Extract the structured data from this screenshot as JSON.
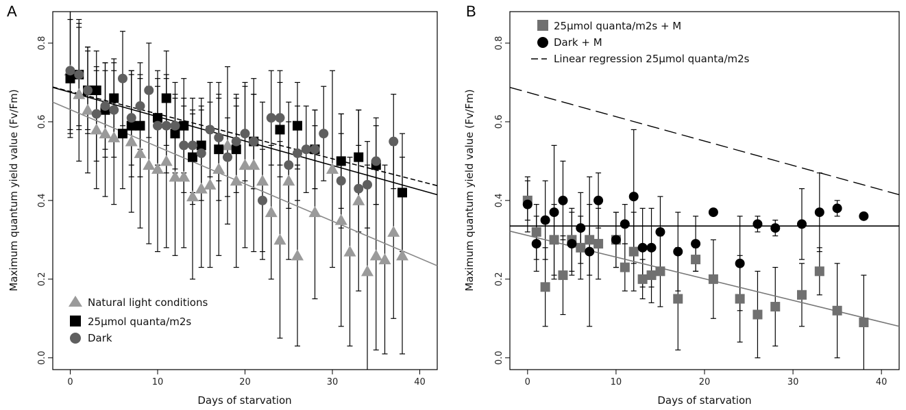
{
  "figure": {
    "panels": [
      {
        "letter": "A",
        "xlabel": "Days of starvation",
        "ylabel": "Maximum quantum yield value (Fv/Fm)",
        "legend": [
          "Natural light conditions",
          "25μmol quanta/m2s",
          "Dark"
        ]
      },
      {
        "letter": "B",
        "xlabel": "Days of starvation",
        "ylabel": "Maximum quantum yield value (Fv/Fm)",
        "legend": [
          "25μmol quanta/m2s + M",
          "Dark + M",
          "Linear regression 25μmol quanta/m2s"
        ]
      }
    ]
  },
  "chart_data": [
    {
      "type": "scatter",
      "panel": "A",
      "xlabel": "Days of starvation",
      "ylabel": "Maximum quantum yield value (Fv/Fm)",
      "xlim": [
        -2,
        42
      ],
      "ylim": [
        -0.03,
        0.88
      ],
      "x_ticks": [
        0,
        10,
        20,
        30,
        40
      ],
      "y_ticks": [
        0.0,
        0.2,
        0.4,
        0.6,
        0.8
      ],
      "legend_position": "bottom-left",
      "series": [
        {
          "name": "Natural light conditions",
          "marker": "triangle",
          "color": "#9a9a9a",
          "x": [
            0,
            1,
            2,
            3,
            4,
            5,
            7,
            8,
            9,
            10,
            11,
            12,
            13,
            14,
            15,
            16,
            17,
            18,
            19,
            20,
            21,
            22,
            23,
            24,
            25,
            26,
            28,
            30,
            31,
            32,
            33,
            34,
            35,
            36,
            37,
            38
          ],
          "y": [
            0.73,
            0.67,
            0.63,
            0.58,
            0.57,
            0.56,
            0.55,
            0.52,
            0.49,
            0.48,
            0.5,
            0.46,
            0.46,
            0.41,
            0.43,
            0.44,
            0.48,
            0.54,
            0.45,
            0.49,
            0.49,
            0.45,
            0.37,
            0.3,
            0.45,
            0.26,
            0.37,
            0.48,
            0.35,
            0.27,
            0.4,
            0.22,
            0.26,
            0.25,
            0.32,
            0.26
          ],
          "err": [
            0.16,
            0.17,
            0.16,
            0.15,
            0.16,
            0.17,
            0.18,
            0.19,
            0.2,
            0.21,
            0.22,
            0.2,
            0.18,
            0.21,
            0.2,
            0.21,
            0.22,
            0.2,
            0.22,
            0.21,
            0.22,
            0.2,
            0.17,
            0.25,
            0.2,
            0.23,
            0.22,
            0.25,
            0.27,
            0.24,
            0.23,
            0.27,
            0.24,
            0.24,
            0.22,
            0.25
          ],
          "regression": {
            "intercept": 0.631,
            "slope": -0.00945
          }
        },
        {
          "name": "25μmol quanta/m2s",
          "marker": "square",
          "color": "#000000",
          "x": [
            0,
            1,
            2,
            3,
            4,
            5,
            6,
            7,
            8,
            10,
            11,
            12,
            13,
            14,
            15,
            17,
            19,
            21,
            24,
            26,
            28,
            31,
            33,
            35,
            38
          ],
          "y": [
            0.71,
            0.72,
            0.68,
            0.68,
            0.63,
            0.66,
            0.57,
            0.59,
            0.59,
            0.61,
            0.66,
            0.57,
            0.59,
            0.51,
            0.54,
            0.53,
            0.53,
            0.55,
            0.58,
            0.59,
            0.53,
            0.5,
            0.51,
            0.49,
            0.42
          ],
          "err": [
            0.15,
            0.13,
            0.11,
            0.1,
            0.12,
            0.1,
            0.14,
            0.13,
            0.13,
            0.12,
            0.12,
            0.1,
            0.12,
            0.12,
            0.12,
            0.13,
            0.11,
            0.12,
            0.12,
            0.11,
            0.1,
            0.12,
            0.12,
            0.1,
            0.15
          ],
          "regression": {
            "intercept": 0.675,
            "slope": -0.0062
          }
        },
        {
          "name": "Dark",
          "marker": "circle",
          "color": "#5f5f5f",
          "x": [
            0,
            1,
            2,
            3,
            4,
            5,
            6,
            7,
            8,
            9,
            10,
            11,
            12,
            13,
            14,
            15,
            16,
            17,
            18,
            19,
            20,
            21,
            22,
            23,
            24,
            25,
            26,
            27,
            28,
            29,
            31,
            33,
            34,
            35,
            37
          ],
          "y": [
            0.73,
            0.72,
            0.68,
            0.62,
            0.64,
            0.63,
            0.71,
            0.61,
            0.64,
            0.68,
            0.59,
            0.59,
            0.59,
            0.54,
            0.54,
            0.52,
            0.58,
            0.56,
            0.51,
            0.55,
            0.57,
            0.55,
            0.4,
            0.61,
            0.61,
            0.49,
            0.52,
            0.53,
            0.53,
            0.57,
            0.45,
            0.43,
            0.44,
            0.5,
            0.55
          ],
          "err": [
            0.15,
            0.14,
            0.1,
            0.12,
            0.11,
            0.12,
            0.12,
            0.12,
            0.11,
            0.12,
            0.12,
            0.12,
            0.11,
            0.12,
            0.12,
            0.12,
            0.12,
            0.11,
            0.1,
            0.11,
            0.12,
            0.12,
            0.13,
            0.12,
            0.12,
            0.11,
            0.12,
            0.11,
            0.1,
            0.12,
            0.12,
            0.11,
            0.11,
            0.11,
            0.12
          ],
          "regression": {
            "intercept": 0.677,
            "slope": -0.0057
          }
        }
      ]
    },
    {
      "type": "scatter",
      "panel": "B",
      "xlabel": "Days of starvation",
      "ylabel": "Maximum quantum yield value (Fv/Fm)",
      "xlim": [
        -2,
        42
      ],
      "ylim": [
        -0.03,
        0.88
      ],
      "x_ticks": [
        0,
        10,
        20,
        30,
        40
      ],
      "y_ticks": [
        0.0,
        0.2,
        0.4,
        0.6,
        0.8
      ],
      "legend_position": "top-left",
      "series": [
        {
          "name": "25μmol quanta/m2s + M",
          "marker": "square",
          "color": "#707070",
          "x": [
            0,
            1,
            2,
            3,
            4,
            5,
            6,
            7,
            8,
            10,
            11,
            12,
            13,
            14,
            15,
            17,
            19,
            21,
            24,
            26,
            28,
            31,
            33,
            35,
            38
          ],
          "y": [
            0.4,
            0.32,
            0.18,
            0.3,
            0.21,
            0.3,
            0.28,
            0.3,
            0.29,
            0.3,
            0.23,
            0.27,
            0.2,
            0.21,
            0.22,
            0.15,
            0.25,
            0.2,
            0.15,
            0.11,
            0.13,
            0.16,
            0.22,
            0.12,
            0.09
          ],
          "err": [
            0.05,
            0.07,
            0.1,
            0.09,
            0.1,
            0.08,
            0.08,
            0.09,
            0.09,
            0.07,
            0.06,
            0.1,
            0.05,
            0.07,
            0.09,
            0.13,
            0.03,
            0.1,
            0.11,
            0.11,
            0.1,
            0.08,
            0.06,
            0.12,
            0.12
          ],
          "regression": {
            "intercept": 0.311,
            "slope": -0.0055
          }
        },
        {
          "name": "Dark + M",
          "marker": "circle",
          "color": "#000000",
          "x": [
            0,
            1,
            2,
            3,
            4,
            5,
            6,
            7,
            8,
            10,
            11,
            12,
            13,
            14,
            15,
            17,
            19,
            21,
            24,
            26,
            28,
            31,
            33,
            35,
            38
          ],
          "y": [
            0.39,
            0.29,
            0.35,
            0.37,
            0.4,
            0.29,
            0.33,
            0.27,
            0.4,
            0.3,
            0.34,
            0.41,
            0.28,
            0.28,
            0.32,
            0.27,
            0.29,
            0.37,
            0.24,
            0.34,
            0.33,
            0.34,
            0.37,
            0.38,
            0.36
          ],
          "err": [
            0.07,
            0.07,
            0.1,
            0.17,
            0.1,
            0.08,
            0.09,
            0.19,
            0.07,
            0.07,
            0.05,
            0.17,
            0.1,
            0.1,
            0.09,
            0.1,
            0.07,
            0.0,
            0.12,
            0.02,
            0.02,
            0.09,
            0.1,
            0.02,
            0.0
          ],
          "regression": {
            "intercept": 0.335,
            "slope": 0.0
          }
        }
      ],
      "reference_line": {
        "name": "Linear regression 25μmol quanta/m2s",
        "style": "dashed",
        "intercept": 0.675,
        "slope": -0.0062
      }
    }
  ]
}
